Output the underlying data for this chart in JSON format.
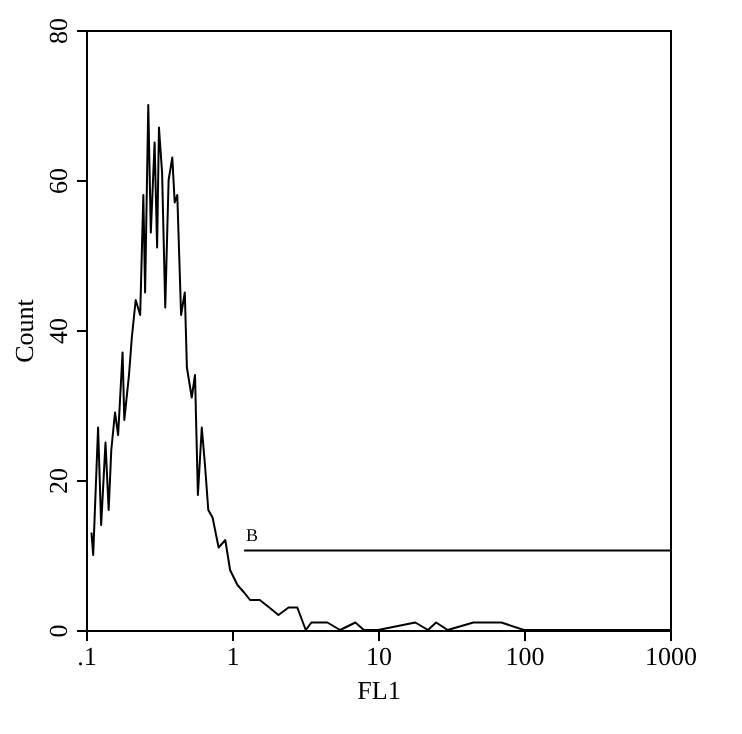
{
  "chart_data": {
    "type": "line",
    "xlabel": "FL1",
    "ylabel": "Count",
    "log": "x",
    "grid": false,
    "xlim": [
      0.1,
      1000
    ],
    "ylim": [
      0,
      80
    ],
    "xticks": [
      {
        "value": 0.1,
        "label": ".1"
      },
      1,
      10,
      100,
      {
        "value": 1000,
        "label": "1000"
      }
    ],
    "yticks": [
      0,
      20,
      40,
      60,
      80
    ],
    "series": [
      {
        "color": "#000000",
        "x": [
          0.109,
          0.112,
          0.121,
          0.127,
          0.136,
          0.143,
          0.149,
          0.158,
          0.166,
          0.178,
          0.183,
          0.197,
          0.206,
          0.219,
          0.235,
          0.247,
          0.254,
          0.267,
          0.278,
          0.295,
          0.307,
          0.316,
          0.332,
          0.349,
          0.368,
          0.39,
          0.405,
          0.422,
          0.448,
          0.475,
          0.491,
          0.53,
          0.558,
          0.584,
          0.621,
          0.653,
          0.688,
          0.736,
          0.81,
          0.9,
          0.97,
          1.09,
          1.21,
          1.33,
          1.55,
          1.8,
          2.08,
          2.44,
          2.8,
          3.2,
          3.5,
          4.5,
          5.5,
          7,
          8,
          10,
          18,
          22,
          25,
          30,
          45,
          70,
          100,
          1000
        ],
        "values": [
          13,
          10,
          27,
          14,
          25,
          16,
          24,
          29,
          26,
          37,
          28,
          34,
          39,
          44,
          42,
          58,
          45,
          70,
          53,
          65,
          51,
          67,
          61,
          43,
          60,
          63,
          57,
          58,
          42,
          45,
          35,
          31,
          34,
          18,
          27,
          22,
          16,
          15,
          11,
          12,
          8,
          6,
          5,
          4,
          4,
          3,
          2,
          3,
          3,
          0,
          1,
          1,
          0,
          1,
          0,
          0,
          1,
          0,
          1,
          0,
          1,
          1,
          0,
          0
        ]
      },
      {
        "color": "#000000",
        "x": [
          1.21,
          1000
        ],
        "values": [
          10.6,
          10.6
        ]
      }
    ],
    "annotations": [
      "B"
    ]
  }
}
